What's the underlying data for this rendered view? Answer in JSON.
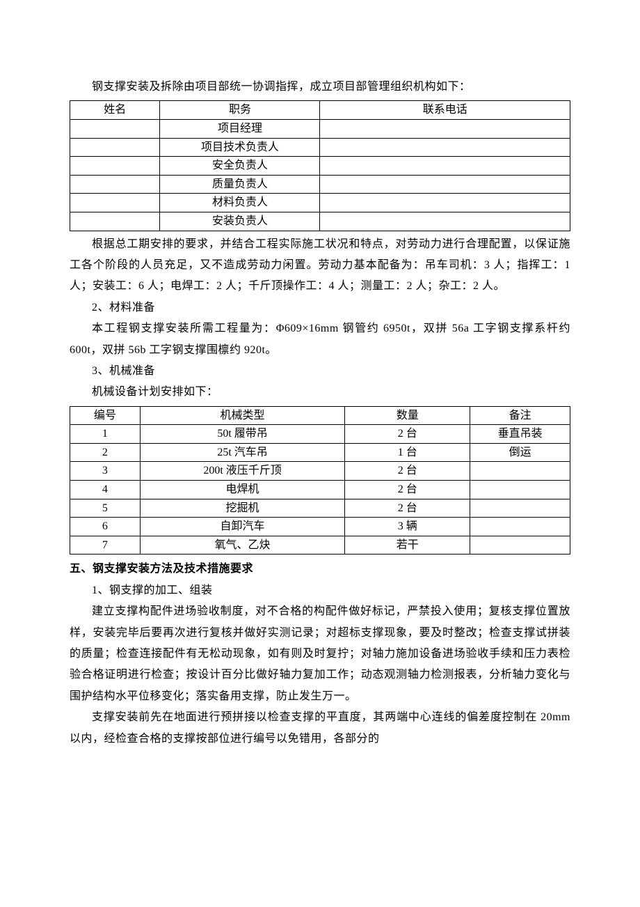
{
  "intro": "钢支撑安装及拆除由项目部统一协调指挥，成立项目部管理组织机构如下：",
  "table1": {
    "headers": [
      "姓名",
      "职务",
      "联系电话"
    ],
    "rows": [
      [
        "",
        "项目经理",
        ""
      ],
      [
        "",
        "项目技术负责人",
        ""
      ],
      [
        "",
        "安全负责人",
        ""
      ],
      [
        "",
        "质量负责人",
        ""
      ],
      [
        "",
        "材料负责人",
        ""
      ],
      [
        "",
        "安装负责人",
        ""
      ]
    ]
  },
  "para1": "根据总工期安排的要求，并结合工程实际施工状况和特点，对劳动力进行合理配置，以保证施工各个阶段的人员充足，又不造成劳动力闲置。劳动力基本配备为：吊车司机：3 人；指挥工：1 人；安装工：6 人；电焊工：2 人；千斤顶操作工：4 人；测量工：2 人；杂工：2 人。",
  "sub2_title": "2、材料准备",
  "sub2_text": "本工程钢支撑安装所需工程量为：Φ609×16mm 钢管约 6950t，双拼 56a 工字钢支撑系杆约 600t，双拼 56b 工字钢支撑围檩约 920t。",
  "sub3_title": "3、机械准备",
  "sub3_text": "机械设备计划安排如下：",
  "table2": {
    "headers": [
      "编号",
      "机械类型",
      "数量",
      "备注"
    ],
    "rows": [
      [
        "1",
        "50t 履带吊",
        "2 台",
        "垂直吊装"
      ],
      [
        "2",
        "25t 汽车吊",
        "1 台",
        "倒运"
      ],
      [
        "3",
        "200t 液压千斤顶",
        "2 台",
        ""
      ],
      [
        "4",
        "电焊机",
        "2 台",
        ""
      ],
      [
        "5",
        "挖掘机",
        "2 台",
        ""
      ],
      [
        "6",
        "自卸汽车",
        "3 辆",
        ""
      ],
      [
        "7",
        "氧气、乙炔",
        "若干",
        ""
      ]
    ]
  },
  "section5_title": "五、钢支撑安装方法及技术措施要求",
  "section5_sub1": "1、钢支撑的加工、组装",
  "section5_p1": "建立支撑构配件进场验收制度，对不合格的构配件做好标记，严禁投入使用；复核支撑位置放样，安装完毕后要再次进行复核并做好实测记录；对超标支撑现象，要及时整改；检查支撑试拼装的质量；检查连接配件有无松动现象，如有则及时复拧；对轴力施加设备进场验收手续和压力表检验合格证明进行检查；按设计百分比做好轴力复加工作；动态观测轴力检测报表，分析轴力变化与围护结构水平位移变化；落实备用支撑，防止发生万一。",
  "section5_p2": "支撑安装前先在地面进行预拼接以检查支撑的平直度，其两端中心连线的偏差度控制在 20mm 以内，经检查合格的支撑按部位进行编号以免错用，各部分的"
}
